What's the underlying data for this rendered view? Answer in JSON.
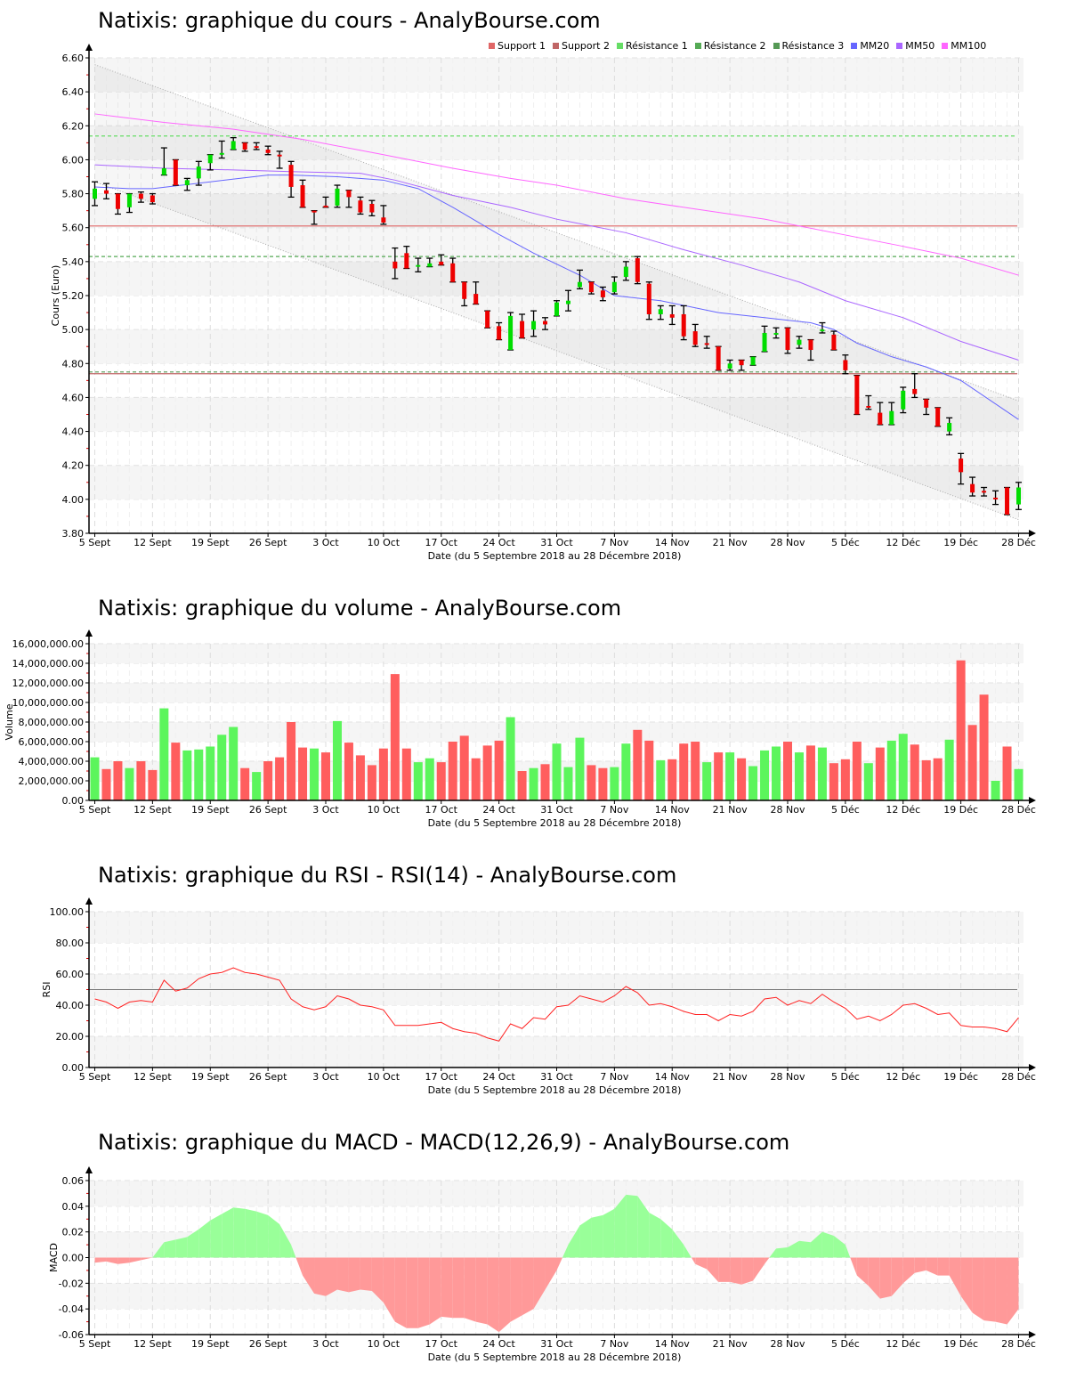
{
  "titles": {
    "price": "Natixis: graphique du cours - AnalyBourse.com",
    "volume": "Natixis: graphique du volume - AnalyBourse.com",
    "rsi": "Natixis: graphique du RSI - RSI(14) - AnalyBourse.com",
    "macd": "Natixis: graphique du MACD - MACD(12,26,9) - AnalyBourse.com"
  },
  "legend": [
    {
      "label": "Support 1",
      "color": "#e06666"
    },
    {
      "label": "Support 2",
      "color": "#c06666"
    },
    {
      "label": "Résistance 1",
      "color": "#66dd66"
    },
    {
      "label": "Résistance 2",
      "color": "#55aa55"
    },
    {
      "label": "Résistance 3",
      "color": "#559955"
    },
    {
      "label": "MM20",
      "color": "#6666ff"
    },
    {
      "label": "MM50",
      "color": "#aa66ff"
    },
    {
      "label": "MM100",
      "color": "#ff66ff"
    }
  ],
  "chart_data": [
    {
      "type": "candlestick",
      "title": "Natixis: graphique du cours - AnalyBourse.com",
      "ylabel": "Cours (Euro)",
      "xlabel": "Date (du 5 Septembre 2018 au 28 Décembre 2018)",
      "ylim": [
        3.8,
        6.6
      ],
      "yticks": [
        "3.80",
        "4.00",
        "4.20",
        "4.40",
        "4.60",
        "4.80",
        "5.00",
        "5.20",
        "5.40",
        "5.60",
        "5.80",
        "6.00",
        "6.20",
        "6.40",
        "6.60"
      ],
      "x_ticks": [
        {
          "index": 0,
          "label": "5 Sept"
        },
        {
          "index": 5,
          "label": "12 Sept"
        },
        {
          "index": 10,
          "label": "19 Sept"
        },
        {
          "index": 15,
          "label": "26 Sept"
        },
        {
          "index": 20,
          "label": "3 Oct"
        },
        {
          "index": 25,
          "label": "10 Oct"
        },
        {
          "index": 30,
          "label": "17 Oct"
        },
        {
          "index": 35,
          "label": "24 Oct"
        },
        {
          "index": 40,
          "label": "31 Oct"
        },
        {
          "index": 45,
          "label": "7 Nov"
        },
        {
          "index": 50,
          "label": "14 Nov"
        },
        {
          "index": 55,
          "label": "21 Nov"
        },
        {
          "index": 60,
          "label": "28 Nov"
        },
        {
          "index": 65,
          "label": "5 Déc"
        },
        {
          "index": 70,
          "label": "12 Déc"
        },
        {
          "index": 75,
          "label": "19 Déc"
        },
        {
          "index": 80,
          "label": "28 Déc"
        }
      ],
      "ohlc": [
        [
          5.77,
          5.87,
          5.73,
          5.83
        ],
        [
          5.82,
          5.86,
          5.77,
          5.8
        ],
        [
          5.8,
          5.8,
          5.68,
          5.71
        ],
        [
          5.72,
          5.8,
          5.69,
          5.8
        ],
        [
          5.8,
          5.81,
          5.75,
          5.77
        ],
        [
          5.79,
          5.8,
          5.74,
          5.75
        ],
        [
          5.91,
          6.07,
          5.91,
          5.95
        ],
        [
          6.0,
          6.0,
          5.85,
          5.85
        ],
        [
          5.85,
          5.89,
          5.82,
          5.88
        ],
        [
          5.89,
          5.99,
          5.85,
          5.96
        ],
        [
          5.98,
          6.03,
          5.94,
          6.03
        ],
        [
          6.03,
          6.11,
          6.01,
          6.04
        ],
        [
          6.06,
          6.13,
          6.06,
          6.11
        ],
        [
          6.1,
          6.1,
          6.05,
          6.06
        ],
        [
          6.08,
          6.1,
          6.06,
          6.07
        ],
        [
          6.06,
          6.08,
          6.03,
          6.04
        ],
        [
          6.03,
          6.05,
          5.95,
          6.02
        ],
        [
          5.97,
          5.99,
          5.78,
          5.84
        ],
        [
          5.85,
          5.88,
          5.72,
          5.72
        ],
        [
          5.7,
          5.7,
          5.62,
          5.69
        ],
        [
          5.73,
          5.78,
          5.72,
          5.72
        ],
        [
          5.73,
          5.85,
          5.72,
          5.83
        ],
        [
          5.82,
          5.82,
          5.72,
          5.78
        ],
        [
          5.76,
          5.78,
          5.68,
          5.69
        ],
        [
          5.74,
          5.76,
          5.67,
          5.69
        ],
        [
          5.66,
          5.73,
          5.62,
          5.63
        ],
        [
          5.4,
          5.48,
          5.3,
          5.36
        ],
        [
          5.45,
          5.49,
          5.36,
          5.36
        ],
        [
          5.37,
          5.42,
          5.34,
          5.38
        ],
        [
          5.37,
          5.42,
          5.37,
          5.39
        ],
        [
          5.4,
          5.44,
          5.38,
          5.38
        ],
        [
          5.39,
          5.42,
          5.28,
          5.28
        ],
        [
          5.28,
          5.28,
          5.14,
          5.18
        ],
        [
          5.21,
          5.28,
          5.15,
          5.15
        ],
        [
          5.11,
          5.11,
          5.01,
          5.01
        ],
        [
          5.02,
          5.04,
          4.94,
          4.94
        ],
        [
          4.88,
          5.1,
          4.88,
          5.08
        ],
        [
          5.05,
          5.09,
          4.95,
          4.95
        ],
        [
          5.0,
          5.11,
          4.96,
          5.05
        ],
        [
          5.05,
          5.07,
          5.0,
          5.03
        ],
        [
          5.08,
          5.17,
          5.08,
          5.16
        ],
        [
          5.15,
          5.23,
          5.11,
          5.17
        ],
        [
          5.25,
          5.35,
          5.24,
          5.28
        ],
        [
          5.28,
          5.28,
          5.21,
          5.22
        ],
        [
          5.23,
          5.25,
          5.17,
          5.19
        ],
        [
          5.22,
          5.31,
          5.21,
          5.28
        ],
        [
          5.31,
          5.4,
          5.29,
          5.37
        ],
        [
          5.42,
          5.43,
          5.27,
          5.28
        ],
        [
          5.27,
          5.28,
          5.06,
          5.09
        ],
        [
          5.09,
          5.14,
          5.06,
          5.12
        ],
        [
          5.09,
          5.14,
          5.03,
          5.07
        ],
        [
          5.09,
          5.14,
          4.94,
          4.96
        ],
        [
          4.99,
          5.03,
          4.9,
          4.91
        ],
        [
          4.92,
          4.96,
          4.89,
          4.91
        ],
        [
          4.9,
          4.9,
          4.76,
          4.76
        ],
        [
          4.77,
          4.82,
          4.76,
          4.8
        ],
        [
          4.82,
          4.82,
          4.76,
          4.79
        ],
        [
          4.79,
          4.84,
          4.79,
          4.84
        ],
        [
          4.87,
          5.02,
          4.87,
          4.98
        ],
        [
          4.97,
          5.01,
          4.95,
          4.98
        ],
        [
          5.01,
          5.01,
          4.86,
          4.88
        ],
        [
          4.91,
          4.96,
          4.89,
          4.94
        ],
        [
          4.94,
          4.94,
          4.82,
          4.88
        ],
        [
          4.99,
          5.04,
          4.98,
          5.0
        ],
        [
          4.97,
          4.99,
          4.88,
          4.88
        ],
        [
          4.82,
          4.85,
          4.74,
          4.76
        ],
        [
          4.73,
          4.73,
          4.5,
          4.5
        ],
        [
          4.55,
          4.61,
          4.53,
          4.54
        ],
        [
          4.51,
          4.57,
          4.44,
          4.44
        ],
        [
          4.44,
          4.57,
          4.44,
          4.52
        ],
        [
          4.53,
          4.66,
          4.51,
          4.64
        ],
        [
          4.65,
          4.74,
          4.6,
          4.62
        ],
        [
          4.59,
          4.59,
          4.5,
          4.54
        ],
        [
          4.54,
          4.54,
          4.43,
          4.43
        ],
        [
          4.4,
          4.48,
          4.38,
          4.45
        ],
        [
          4.24,
          4.27,
          4.09,
          4.16
        ],
        [
          4.09,
          4.13,
          4.02,
          4.04
        ],
        [
          4.05,
          4.07,
          4.02,
          4.04
        ],
        [
          4.01,
          4.05,
          3.97,
          4.0
        ],
        [
          4.07,
          4.07,
          3.91,
          3.91
        ],
        [
          3.97,
          4.1,
          3.94,
          4.07
        ]
      ],
      "levels": [
        {
          "name": "Support 1",
          "value": 5.61,
          "color": "#e06666",
          "style": "solid"
        },
        {
          "name": "Support 2",
          "value": 4.74,
          "color": "#c06666",
          "style": "solid"
        },
        {
          "name": "Résistance 1",
          "value": 6.14,
          "color": "#66dd66",
          "style": "dashed"
        },
        {
          "name": "Résistance 2",
          "value": 5.43,
          "color": "#55aa55",
          "style": "dashed"
        },
        {
          "name": "Résistance 3",
          "value": 4.75,
          "color": "#559955",
          "style": "dashed"
        }
      ],
      "moving_averages": [
        {
          "name": "MM20",
          "color": "#6666ff",
          "points": [
            [
              0,
              5.84
            ],
            [
              3,
              5.83
            ],
            [
              5,
              5.83
            ],
            [
              10,
              5.87
            ],
            [
              15,
              5.91
            ],
            [
              17,
              5.91
            ],
            [
              21,
              5.9
            ],
            [
              25,
              5.88
            ],
            [
              28,
              5.83
            ],
            [
              31,
              5.72
            ],
            [
              35,
              5.56
            ],
            [
              38,
              5.45
            ],
            [
              42,
              5.32
            ],
            [
              45,
              5.2
            ],
            [
              49,
              5.17
            ],
            [
              54,
              5.1
            ],
            [
              58,
              5.07
            ],
            [
              62,
              5.04
            ],
            [
              64,
              5.0
            ],
            [
              66,
              4.92
            ],
            [
              69,
              4.84
            ],
            [
              72,
              4.78
            ],
            [
              75,
              4.7
            ],
            [
              80,
              4.47
            ]
          ]
        },
        {
          "name": "MM50",
          "color": "#aa66ff",
          "points": [
            [
              0,
              5.97
            ],
            [
              6,
              5.95
            ],
            [
              12,
              5.94
            ],
            [
              17,
              5.93
            ],
            [
              23,
              5.92
            ],
            [
              26,
              5.88
            ],
            [
              31,
              5.79
            ],
            [
              36,
              5.72
            ],
            [
              40,
              5.65
            ],
            [
              46,
              5.57
            ],
            [
              51,
              5.47
            ],
            [
              56,
              5.38
            ],
            [
              61,
              5.28
            ],
            [
              65,
              5.17
            ],
            [
              70,
              5.07
            ],
            [
              75,
              4.93
            ],
            [
              80,
              4.82
            ]
          ]
        },
        {
          "name": "MM100",
          "color": "#ff66ff",
          "points": [
            [
              0,
              6.27
            ],
            [
              6,
              6.22
            ],
            [
              12,
              6.18
            ],
            [
              18,
              6.12
            ],
            [
              25,
              6.03
            ],
            [
              31,
              5.95
            ],
            [
              36,
              5.89
            ],
            [
              40,
              5.85
            ],
            [
              46,
              5.77
            ],
            [
              52,
              5.71
            ],
            [
              58,
              5.65
            ],
            [
              64,
              5.57
            ],
            [
              70,
              5.49
            ],
            [
              75,
              5.42
            ],
            [
              80,
              5.32
            ]
          ]
        }
      ],
      "trend_channel": {
        "upper": [
          6.56,
          4.58
        ],
        "lower": [
          5.87,
          3.88
        ]
      }
    },
    {
      "type": "bar",
      "title": "Natixis: graphique du volume - AnalyBourse.com",
      "ylabel": "Volume",
      "xlabel": "Date (du 5 Septembre 2018 au 28 Décembre 2018)",
      "ylim": [
        0,
        16000000
      ],
      "yticks": [
        "0.00",
        "2,000,000.00",
        "4,000,000.00",
        "6,000,000.00",
        "8,000,000.00",
        "10,000,000.00",
        "12,000,000.00",
        "14,000,000.00",
        "16,000,000.00"
      ],
      "values_millions": [
        4.4,
        3.2,
        4.0,
        3.3,
        4.0,
        3.1,
        9.4,
        5.9,
        5.1,
        5.2,
        5.5,
        6.7,
        7.5,
        3.3,
        2.9,
        4.0,
        4.4,
        8.0,
        5.4,
        5.3,
        4.9,
        8.1,
        5.9,
        4.6,
        3.6,
        5.3,
        12.9,
        5.3,
        3.9,
        4.3,
        3.9,
        6.0,
        6.6,
        4.3,
        5.6,
        6.1,
        8.5,
        3.0,
        3.3,
        3.7,
        5.8,
        3.4,
        6.4,
        3.6,
        3.3,
        3.4,
        5.8,
        7.2,
        6.1,
        4.1,
        4.2,
        5.8,
        6.0,
        3.9,
        4.9,
        4.9,
        4.3,
        3.5,
        5.1,
        5.5,
        6.0,
        4.9,
        5.6,
        5.4,
        3.8,
        4.2,
        6.0,
        3.8,
        5.4,
        6.1,
        6.8,
        5.7,
        4.1,
        4.3,
        6.2,
        14.3,
        7.7,
        10.8,
        2.0,
        5.5,
        3.2
      ],
      "direction": "GRRGRRGRGGGGGRGRRRRGRGRRRRRRGGRRRRRRGRGRGGGRRGGRRGRRRGRGRGGGRGRGRRRGRGGRRRGRRRGRG",
      "colors": {
        "up": "#5cf55c",
        "down": "#ff5e5e"
      }
    },
    {
      "type": "line",
      "title": "Natixis: graphique du RSI - RSI(14) - AnalyBourse.com",
      "ylabel": "RSI",
      "xlabel": "Date (du 5 Septembre 2018 au 28 Décembre 2018)",
      "ylim": [
        0,
        100
      ],
      "yticks": [
        "0.00",
        "20.00",
        "40.00",
        "60.00",
        "80.00",
        "100.00"
      ],
      "reference_line": 50,
      "values": [
        44,
        42,
        38,
        42,
        43,
        42,
        56,
        49,
        51,
        57,
        60,
        61,
        64,
        61,
        60,
        58,
        56,
        44,
        39,
        37,
        39,
        46,
        44,
        40,
        39,
        37,
        27,
        27,
        27,
        28,
        29,
        25,
        23,
        22,
        19,
        17,
        28,
        25,
        32,
        31,
        39,
        40,
        46,
        44,
        42,
        46,
        52,
        48,
        40,
        41,
        39,
        36,
        34,
        34,
        30,
        34,
        33,
        36,
        44,
        45,
        40,
        43,
        41,
        47,
        42,
        38,
        31,
        33,
        30,
        34,
        40,
        41,
        38,
        34,
        35,
        27,
        26,
        26,
        25,
        23,
        32
      ],
      "color": "#ff2222"
    },
    {
      "type": "area",
      "title": "Natixis: graphique du MACD - MACD(12,26,9) - AnalyBourse.com",
      "ylabel": "MACD",
      "xlabel": "Date (du 5 Septembre 2018 au 28 Décembre 2018)",
      "ylim": [
        -0.06,
        0.06
      ],
      "yticks": [
        "-0.06",
        "-0.04",
        "-0.02",
        "0.00",
        "0.02",
        "0.04",
        "0.06"
      ],
      "values": [
        -0.004,
        -0.003,
        -0.005,
        -0.004,
        -0.002,
        0.0,
        0.012,
        0.014,
        0.016,
        0.022,
        0.029,
        0.034,
        0.039,
        0.038,
        0.036,
        0.033,
        0.026,
        0.01,
        -0.014,
        -0.028,
        -0.03,
        -0.025,
        -0.027,
        -0.025,
        -0.026,
        -0.035,
        -0.05,
        -0.055,
        -0.055,
        -0.052,
        -0.046,
        -0.047,
        -0.047,
        -0.05,
        -0.052,
        -0.058,
        -0.05,
        -0.045,
        -0.04,
        -0.025,
        -0.01,
        0.01,
        0.025,
        0.031,
        0.033,
        0.038,
        0.049,
        0.048,
        0.035,
        0.03,
        0.022,
        0.01,
        -0.005,
        -0.009,
        -0.019,
        -0.019,
        -0.021,
        -0.018,
        -0.005,
        0.007,
        0.008,
        0.013,
        0.012,
        0.02,
        0.017,
        0.01,
        -0.014,
        -0.022,
        -0.032,
        -0.03,
        -0.02,
        -0.012,
        -0.01,
        -0.014,
        -0.014,
        -0.03,
        -0.043,
        -0.049,
        -0.05,
        -0.052,
        -0.04
      ],
      "colors": {
        "positive": "#99ff99",
        "negative": "#ff9999"
      }
    }
  ]
}
